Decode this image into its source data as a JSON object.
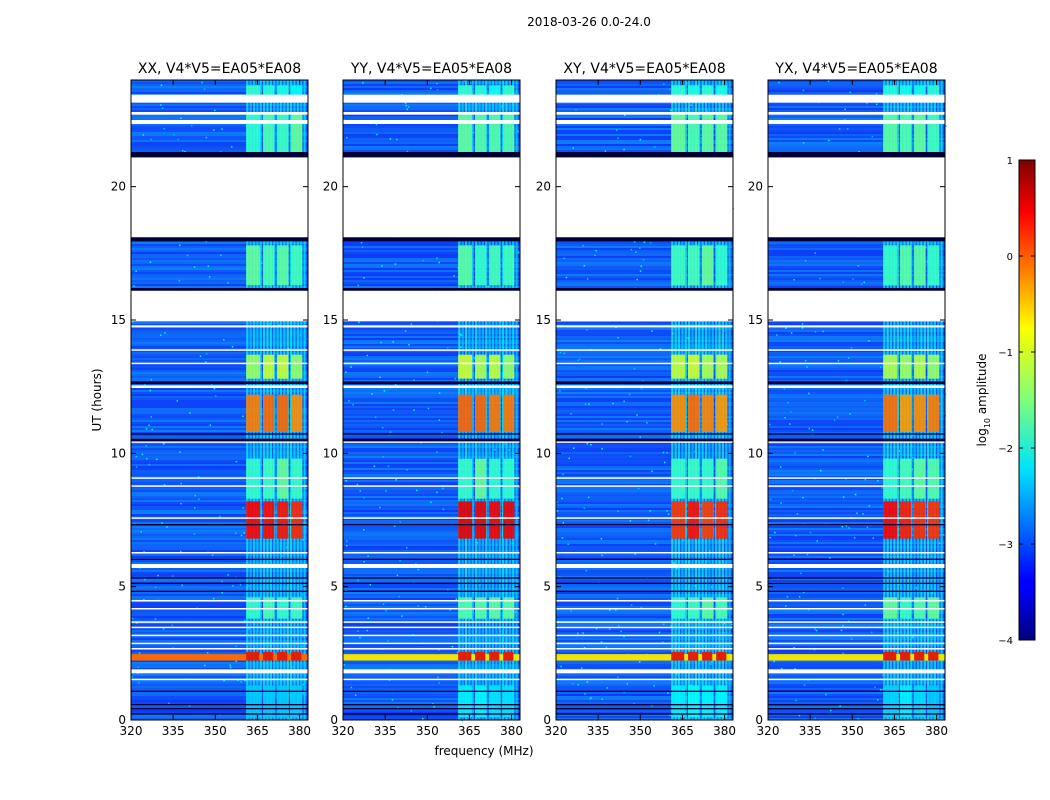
{
  "chart_data": {
    "type": "heatmap",
    "suptitle": "2018-03-26 0.0-24.0",
    "xlabel": "frequency (MHz)",
    "ylabel": "UT (hours)",
    "xlim": [
      320,
      383
    ],
    "ylim": [
      0,
      24
    ],
    "xticks": [
      "320",
      "335",
      "350",
      "365",
      "380"
    ],
    "xtick_values": [
      320,
      335,
      350,
      365,
      380
    ],
    "yticks": [
      "0",
      "5",
      "10",
      "15",
      "20"
    ],
    "ytick_values": [
      0,
      5,
      10,
      15,
      20
    ],
    "colorbar": {
      "label": "log10 amplitude",
      "label_main": "log",
      "label_sub": "10",
      "label_rest": " amplitude",
      "range": [
        -4,
        1
      ],
      "ticks": [
        "1",
        "0",
        "−1",
        "−2",
        "−3",
        "−4"
      ],
      "tick_values": [
        1,
        0,
        -1,
        -2,
        -3,
        -4
      ],
      "colormap": "jet"
    },
    "panels": [
      {
        "title": "XX, V4*V5=EA05*EA08",
        "polarization": "XX"
      },
      {
        "title": "YY, V4*V5=EA05*EA08",
        "polarization": "YY"
      },
      {
        "title": "XY, V4*V5=EA05*EA08",
        "polarization": "XY"
      },
      {
        "title": "YX, V4*V5=EA05*EA08",
        "polarization": "YX"
      }
    ],
    "gaps_hours": [
      [
        21.1,
        18.1
      ],
      [
        16.1,
        15.1
      ],
      [
        0.0,
        0.0
      ]
    ],
    "rfi_band_mhz": [
      361,
      382
    ],
    "strong_rfi_time_hours": 2.35
  }
}
